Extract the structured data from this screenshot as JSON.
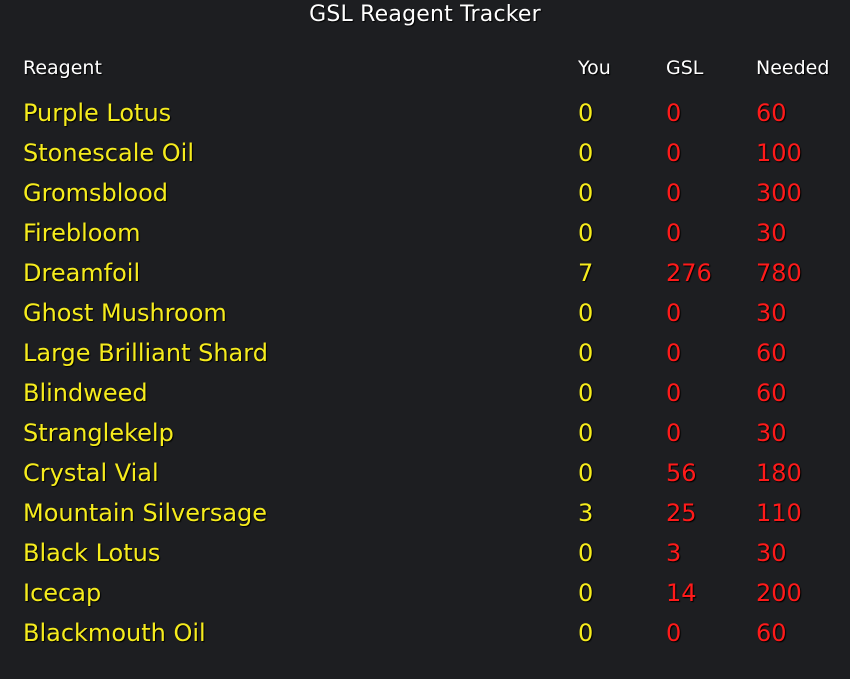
{
  "window": {
    "title": "GSL Reagent Tracker"
  },
  "table": {
    "headers": {
      "reagent": "Reagent",
      "you": "You",
      "gsl": "GSL",
      "needed": "Needed"
    },
    "rows": [
      {
        "name": "Purple Lotus",
        "you": "0",
        "gsl": "0",
        "needed": "60"
      },
      {
        "name": "Stonescale Oil",
        "you": "0",
        "gsl": "0",
        "needed": "100"
      },
      {
        "name": "Gromsblood",
        "you": "0",
        "gsl": "0",
        "needed": "300"
      },
      {
        "name": "Firebloom",
        "you": "0",
        "gsl": "0",
        "needed": "30"
      },
      {
        "name": "Dreamfoil",
        "you": "7",
        "gsl": "276",
        "needed": "780"
      },
      {
        "name": "Ghost Mushroom",
        "you": "0",
        "gsl": "0",
        "needed": "30"
      },
      {
        "name": "Large Brilliant Shard",
        "you": "0",
        "gsl": "0",
        "needed": "60"
      },
      {
        "name": "Blindweed",
        "you": "0",
        "gsl": "0",
        "needed": "60"
      },
      {
        "name": "Stranglekelp",
        "you": "0",
        "gsl": "0",
        "needed": "30"
      },
      {
        "name": "Crystal Vial",
        "you": "0",
        "gsl": "56",
        "needed": "180"
      },
      {
        "name": "Mountain Silversage",
        "you": "3",
        "gsl": "25",
        "needed": "110"
      },
      {
        "name": "Black Lotus",
        "you": "0",
        "gsl": "3",
        "needed": "30"
      },
      {
        "name": "Icecap",
        "you": "0",
        "gsl": "14",
        "needed": "200"
      },
      {
        "name": "Blackmouth Oil",
        "you": "0",
        "gsl": "0",
        "needed": "60"
      }
    ]
  },
  "colors": {
    "background": "#1d1e21",
    "header_text": "#ffffff",
    "reagent_text": "#f6ec1d",
    "missing_text": "#ff1a1a"
  }
}
